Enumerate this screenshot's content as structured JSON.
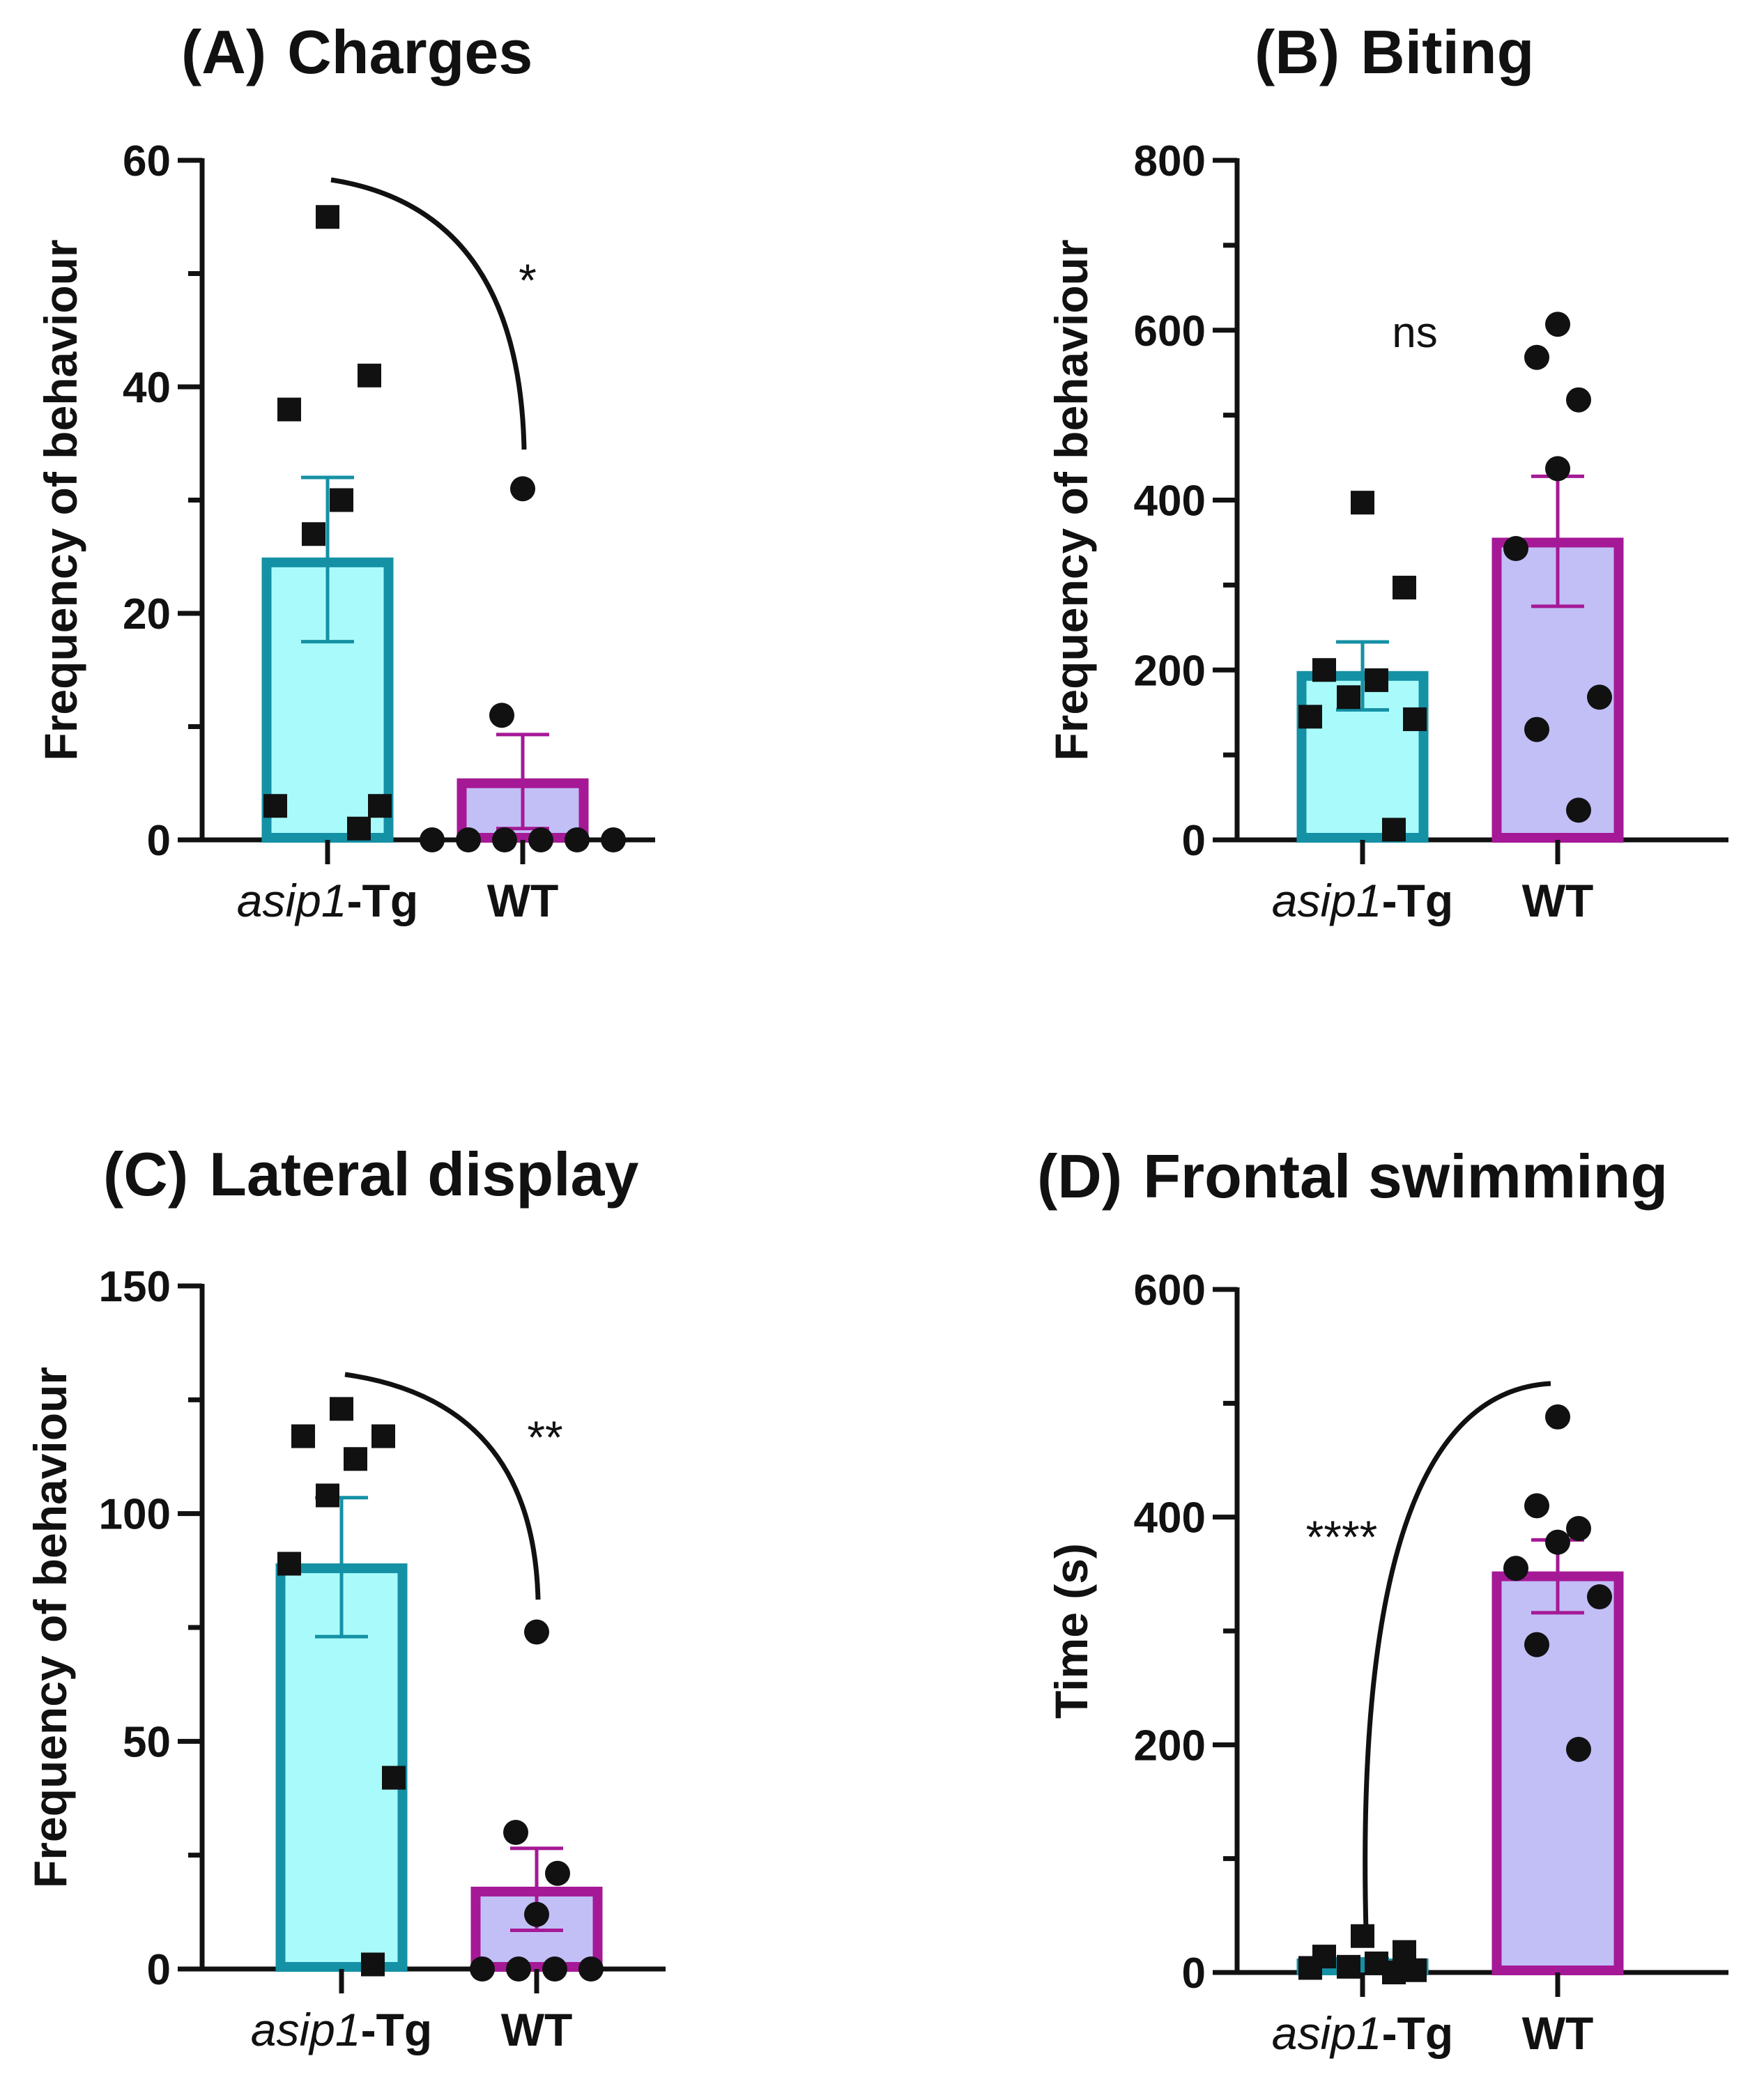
{
  "colors": {
    "tg_stroke": "#1591a5",
    "tg_fill": "#a9fbfb",
    "wt_stroke": "#a51996",
    "wt_fill": "#c2bff7",
    "ink": "#111111"
  },
  "chart_data": [
    {
      "type": "bar",
      "title": "Charges",
      "panel_label": "(A)",
      "ylabel": "Frequency of behaviour",
      "ylim": [
        0,
        60
      ],
      "yticks": [
        "0",
        "20",
        "40",
        "60"
      ],
      "categories": [
        "asip1-Tg",
        "WT"
      ],
      "category_parts": [
        {
          "italic": "asip1",
          "rest": "-Tg"
        },
        {
          "italic": "",
          "rest": "WT"
        }
      ],
      "series": [
        {
          "name": "asip1-Tg",
          "mean": 24.5,
          "sem_low": 17.5,
          "sem_high": 32,
          "points": [
            55,
            41,
            38,
            30,
            27,
            3,
            3,
            1
          ]
        },
        {
          "name": "WT",
          "mean": 5,
          "sem_low": 1,
          "sem_high": 9.3,
          "points": [
            31,
            11,
            0,
            0,
            0,
            0,
            0,
            0
          ]
        }
      ],
      "significance": "*"
    },
    {
      "type": "bar",
      "title": "Biting",
      "panel_label": "(B)",
      "ylabel": "Frequency of behaviour",
      "ylim": [
        0,
        800
      ],
      "yticks": [
        "0",
        "200",
        "400",
        "600",
        "800"
      ],
      "categories": [
        "asip1-Tg",
        "WT"
      ],
      "category_parts": [
        {
          "italic": "asip1",
          "rest": "-Tg"
        },
        {
          "italic": "",
          "rest": "WT"
        }
      ],
      "series": [
        {
          "name": "asip1-Tg",
          "mean": 193,
          "sem_low": 153,
          "sem_high": 233,
          "points": [
            397,
            297,
            200,
            188,
            168,
            145,
            142,
            12
          ]
        },
        {
          "name": "WT",
          "mean": 350,
          "sem_low": 275,
          "sem_high": 428,
          "points": [
            607,
            568,
            518,
            437,
            343,
            168,
            130,
            35
          ]
        }
      ],
      "significance": "ns"
    },
    {
      "type": "bar",
      "title": "Lateral display",
      "panel_label": "(C)",
      "ylabel": "Frequency of behaviour",
      "ylim": [
        0,
        150
      ],
      "yticks": [
        "0",
        "50",
        "100",
        "150"
      ],
      "categories": [
        "asip1-Tg",
        "WT"
      ],
      "category_parts": [
        {
          "italic": "asip1",
          "rest": "-Tg"
        },
        {
          "italic": "",
          "rest": "WT"
        }
      ],
      "series": [
        {
          "name": "asip1-Tg",
          "mean": 88,
          "sem_low": 73,
          "sem_high": 103.5,
          "points": [
            123,
            117,
            117,
            112,
            104,
            89,
            42,
            1
          ]
        },
        {
          "name": "WT",
          "mean": 17,
          "sem_low": 8.5,
          "sem_high": 26.5,
          "points": [
            74,
            30,
            21,
            12,
            0,
            0,
            0,
            0
          ]
        }
      ],
      "significance": "**"
    },
    {
      "type": "bar",
      "title": "Frontal swimming",
      "panel_label": "(D)",
      "ylabel": "Time (s)",
      "ylim": [
        0,
        600
      ],
      "yticks": [
        "0",
        "200",
        "400",
        "600"
      ],
      "categories": [
        "asip1-Tg",
        "WT"
      ],
      "category_parts": [
        {
          "italic": "asip1",
          "rest": "-Tg"
        },
        {
          "italic": "",
          "rest": "WT"
        }
      ],
      "series": [
        {
          "name": "asip1-Tg",
          "mean": 8,
          "sem_low": 4,
          "sem_high": 12,
          "points": [
            32,
            18,
            14,
            8,
            5,
            4,
            2,
            0
          ]
        },
        {
          "name": "WT",
          "mean": 348,
          "sem_low": 316,
          "sem_high": 380,
          "points": [
            488,
            410,
            390,
            378,
            355,
            330,
            288,
            196
          ]
        }
      ],
      "significance": "****"
    }
  ]
}
